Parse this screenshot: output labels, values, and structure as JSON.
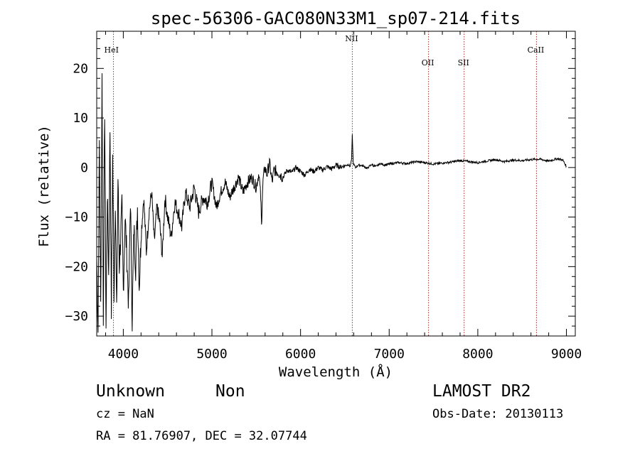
{
  "chart_data": {
    "type": "line",
    "title": "spec-56306-GAC080N33M1_sp07-214.fits",
    "xlabel": "Wavelength (Å)",
    "ylabel": "Flux (relative)",
    "xlim": [
      3700,
      9100
    ],
    "ylim": [
      -34,
      27.5
    ],
    "xticks": [
      4000,
      5000,
      6000,
      7000,
      8000,
      9000
    ],
    "xtick_labels": [
      "4000",
      "5000",
      "6000",
      "7000",
      "8000",
      "9000"
    ],
    "yticks": [
      -30,
      -20,
      -10,
      0,
      10,
      20
    ],
    "ytick_labels": [
      "−30",
      "−20",
      "−10",
      "0",
      "10",
      "20"
    ],
    "grid": false,
    "line_color": "#000000",
    "marker_color": "#a0302a",
    "lines": [
      {
        "label": "HeI",
        "x": 3889
      },
      {
        "label": "NII",
        "x": 6584
      },
      {
        "label": "OII",
        "x": 7444
      },
      {
        "label": "SII",
        "x": 7846
      },
      {
        "label": "CaII",
        "x": 8662
      }
    ],
    "series": [
      {
        "x": [
          3700,
          3715,
          3730,
          3745,
          3760,
          3775,
          3790,
          3805,
          3820,
          3835,
          3850,
          3865,
          3880,
          3895,
          3910,
          3925,
          3940,
          3955,
          3970,
          3985,
          4000,
          4020,
          4040,
          4060,
          4080,
          4100,
          4120,
          4140,
          4160,
          4180,
          4200,
          4230,
          4260,
          4290,
          4320,
          4350,
          4380,
          4410,
          4440,
          4470,
          4500,
          4540,
          4580,
          4620,
          4660,
          4700,
          4750,
          4800,
          4850,
          4900,
          4950,
          5000,
          5050,
          5100,
          5150,
          5200,
          5250,
          5300,
          5350,
          5400,
          5450,
          5500,
          5530,
          5550,
          5560,
          5570,
          5580,
          5600,
          5620,
          5650,
          5680,
          5700,
          5750,
          5800,
          5850,
          5900,
          5950,
          6000,
          6050,
          6100,
          6150,
          6200,
          6250,
          6300,
          6350,
          6400,
          6450,
          6500,
          6540,
          6560,
          6575,
          6584,
          6595,
          6620,
          6650,
          6700,
          6750,
          6800,
          6850,
          6900,
          6950,
          7000,
          7100,
          7200,
          7300,
          7400,
          7500,
          7600,
          7700,
          7800,
          7900,
          8000,
          8100,
          8200,
          8300,
          8400,
          8500,
          8600,
          8700,
          8800,
          8900,
          8960,
          9000
        ],
        "values": [
          -18,
          -33,
          5,
          -28,
          18,
          -30,
          12,
          -32,
          -5,
          -22,
          8,
          -29,
          2,
          -25,
          -6,
          -30,
          -2,
          -20,
          -14,
          -8,
          -25,
          -10,
          -18,
          -28,
          -6,
          -31,
          -12,
          -20,
          -8,
          -24,
          -14,
          -6,
          -17,
          -9,
          -5,
          -15,
          -8,
          -11,
          -18,
          -6,
          -10,
          -14,
          -7,
          -9,
          -12,
          -5,
          -8,
          -4,
          -9,
          -6,
          -7,
          -3,
          -8,
          -5,
          -3,
          -6,
          -4,
          -2,
          -5,
          -3,
          -2,
          -4,
          -1,
          -6,
          -12,
          -5,
          -2,
          0,
          -1.5,
          1,
          -3,
          -0.5,
          -1,
          -2,
          -0.5,
          -1,
          0,
          -0.8,
          -1.5,
          -0.3,
          -0.8,
          0,
          -0.5,
          0.2,
          -0.3,
          0.5,
          0.1,
          0.4,
          0.6,
          0.2,
          1.5,
          6.5,
          0.8,
          0,
          0.5,
          0.4,
          -0.2,
          0.6,
          0.2,
          0.8,
          0.5,
          0.7,
          1,
          0.8,
          1.2,
          1,
          0.7,
          0.9,
          1.1,
          1.4,
          1.2,
          1,
          1.3,
          1.6,
          1.2,
          1.5,
          1.4,
          1.6,
          1.7,
          1.3,
          1.8,
          1.5,
          0.2
        ]
      }
    ]
  },
  "footer": {
    "class_label": "Unknown",
    "subclass_label": "Non",
    "cz_text": "cz = NaN",
    "coords_text": "RA =  81.76907, DEC =  32.07744",
    "survey_label": "LAMOST DR2",
    "obs_date_text": "Obs-Date: 20130113"
  }
}
